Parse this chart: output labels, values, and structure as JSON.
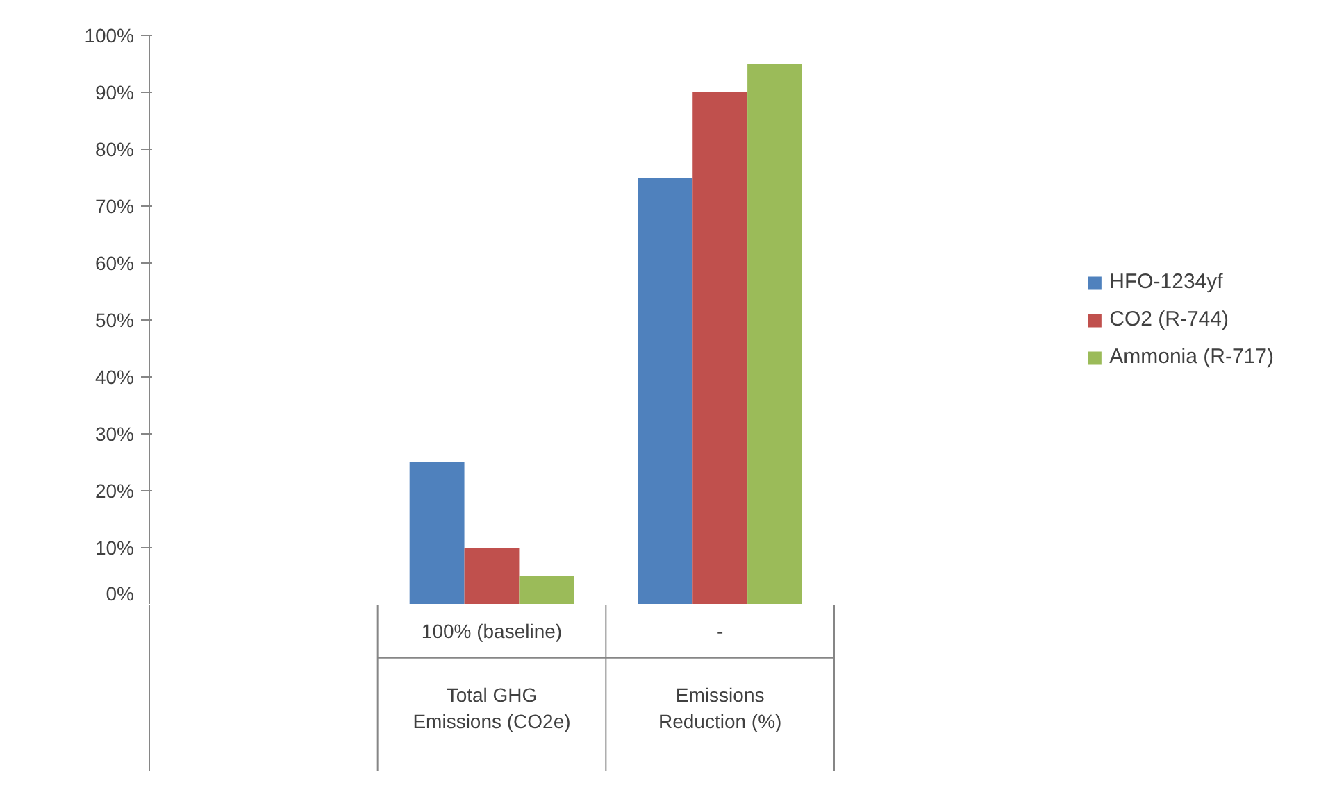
{
  "chart_data": {
    "type": "bar",
    "categories": [
      null,
      "100% (baseline)",
      "-"
    ],
    "annotations": [
      "Total GHG Emissions (CO2e)",
      "Emissions Reduction (%)"
    ],
    "series": [
      {
        "name": "HFO-1234yf",
        "color": "#4f81bd",
        "values": [
          null,
          25,
          75
        ]
      },
      {
        "name": "CO2 (R-744)",
        "color": "#c0504d",
        "values": [
          null,
          10,
          90
        ]
      },
      {
        "name": "Ammonia (R-717)",
        "color": "#9bbb59",
        "values": [
          null,
          5,
          95
        ]
      }
    ],
    "ylim": [
      0,
      100
    ],
    "yticks": [
      {
        "value": 0,
        "label": "0%"
      },
      {
        "value": 10,
        "label": "10%"
      },
      {
        "value": 20,
        "label": "20%"
      },
      {
        "value": 30,
        "label": "30%"
      },
      {
        "value": 40,
        "label": "40%"
      },
      {
        "value": 50,
        "label": "50%"
      },
      {
        "value": 60,
        "label": "60%"
      },
      {
        "value": 70,
        "label": "70%"
      },
      {
        "value": 80,
        "label": "80%"
      },
      {
        "value": 90,
        "label": "90%"
      },
      {
        "value": 100,
        "label": "100%"
      }
    ],
    "grid": false,
    "legend": "right"
  }
}
